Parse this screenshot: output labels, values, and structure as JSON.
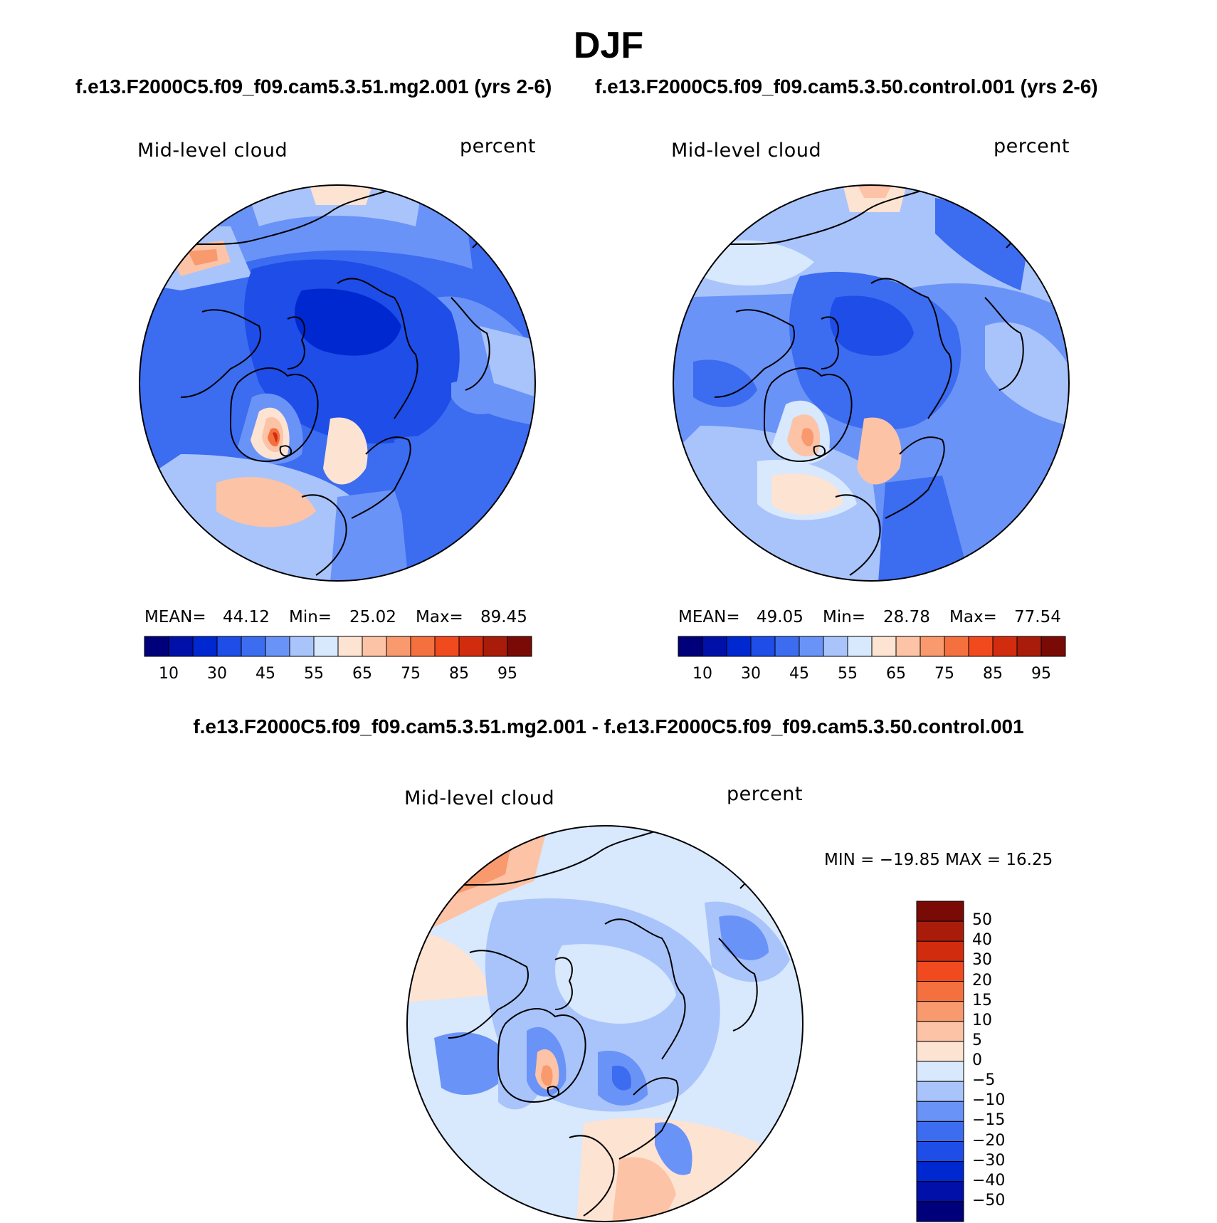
{
  "title": "DJF",
  "panels": [
    {
      "case": "f.e13.F2000C5.f09_f09.cam5.3.51.mg2.001 (yrs 2-6)",
      "variable": "Mid-level cloud",
      "units": "percent",
      "mean_label": "MEAN=",
      "mean": "44.12",
      "min_label": "Min=",
      "min": "25.02",
      "max_label": "Max=",
      "max": "89.45"
    },
    {
      "case": "f.e13.F2000C5.f09_f09.cam5.3.50.control.001 (yrs 2-6)",
      "variable": "Mid-level cloud",
      "units": "percent",
      "mean_label": "MEAN=",
      "mean": "49.05",
      "min_label": "Min=",
      "min": "28.78",
      "max_label": "Max=",
      "max": "77.54"
    }
  ],
  "abs_colorbar": {
    "colors": [
      "#00007a",
      "#0010a8",
      "#0028d0",
      "#1e4de8",
      "#3c6cf0",
      "#6a93f8",
      "#a9c4fb",
      "#d8e8fd",
      "#fde3d2",
      "#fcc3a6",
      "#f8996e",
      "#f5703f",
      "#f04a1e",
      "#d22c0e",
      "#a91c0a",
      "#7a0a06"
    ],
    "labels": [
      "10",
      "30",
      "45",
      "55",
      "65",
      "75",
      "85",
      "95"
    ]
  },
  "diff_panel": {
    "title": "f.e13.F2000C5.f09_f09.cam5.3.51.mg2.001 - f.e13.F2000C5.f09_f09.cam5.3.50.control.001",
    "variable": "Mid-level cloud",
    "units": "percent",
    "minmax": "MIN = −19.85 MAX =   16.25"
  },
  "diff_colorbar": {
    "colors_top_to_bottom": [
      "#7a0a06",
      "#a91c0a",
      "#d22c0e",
      "#f04a1e",
      "#f5703f",
      "#f8996e",
      "#fcc3a6",
      "#fde3d2",
      "#d8e8fd",
      "#a9c4fb",
      "#6a93f8",
      "#3c6cf0",
      "#1e4de8",
      "#0028d0",
      "#0010a8",
      "#00007a"
    ],
    "labels": [
      "50",
      "40",
      "30",
      "20",
      "15",
      "10",
      "5",
      "0",
      "−5",
      "−10",
      "−15",
      "−20",
      "−30",
      "−40",
      "−50"
    ]
  }
}
